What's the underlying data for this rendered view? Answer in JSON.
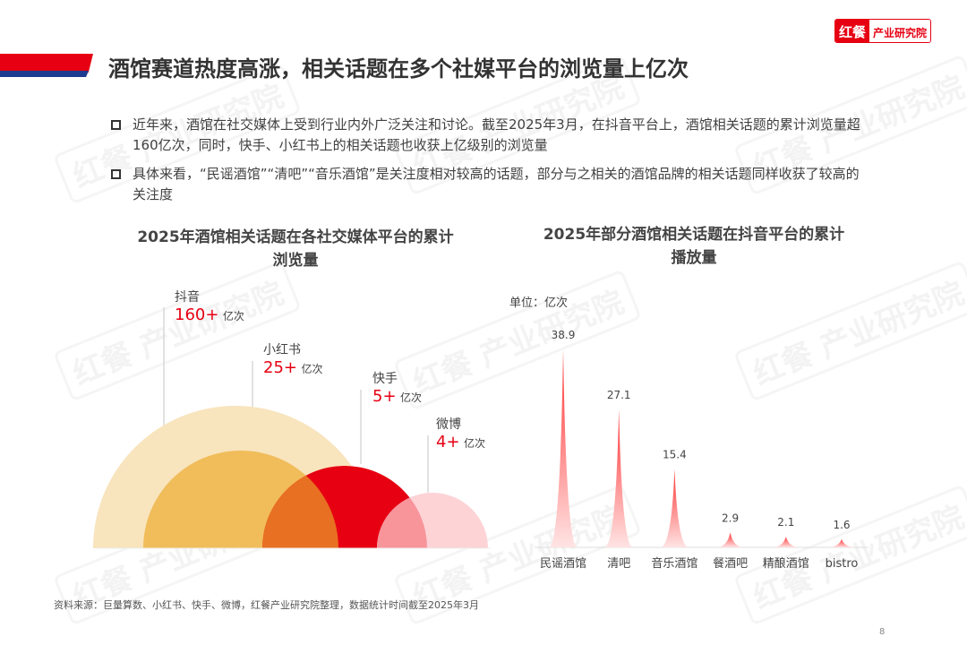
{
  "logo": {
    "brand": "红餐",
    "name": "产业研究院"
  },
  "watermark": "红餐 产业研究院",
  "title": "酒馆赛道热度高涨，相关话题在多个社媒平台的浏览量上亿次",
  "bullets": [
    "近年来，酒馆在社交媒体上受到行业内外广泛关注和讨论。截至2025年3月，在抖音平台上，酒馆相关话题的累计浏览量超160亿次，同时，快手、小红书上的相关话题也收获上亿级别的浏览量",
    "具体来看，“民谣酒馆”“清吧”“音乐酒馆”是关注度相对较高的话题，部分与之相关的酒馆品牌的相关话题同样收获了较高的关注度"
  ],
  "chart_data": [
    {
      "type": "bubble-semicircle",
      "title": "2025年酒馆相关话题在各社交媒体平台的累计浏览量",
      "unit": "亿次",
      "items": [
        {
          "platform": "抖音",
          "value_label": "160+",
          "value": 160,
          "color": "#f8e4bd"
        },
        {
          "platform": "小红书",
          "value_label": "25+",
          "value": 25,
          "color": "#f0bd5a"
        },
        {
          "platform": "快手",
          "value_label": "5+",
          "value": 5,
          "color": "#e60012"
        },
        {
          "platform": "微博",
          "value_label": "4+",
          "value": 4,
          "color": "#fdd3d6"
        }
      ]
    },
    {
      "type": "bar",
      "title": "2025年部分酒馆相关话题在抖音平台的累计播放量",
      "unit_label": "单位：亿次",
      "categories": [
        "民谣酒馆",
        "清吧",
        "音乐酒馆",
        "餐酒吧",
        "精酿酒馆",
        "bistro"
      ],
      "values": [
        38.9,
        27.1,
        15.4,
        2.9,
        2.1,
        1.6
      ],
      "value_labels": [
        "38.9",
        "27.1",
        "15.4",
        "2.9",
        "2.1",
        "1.6"
      ],
      "color": "#ff3b3b"
    }
  ],
  "source": "资料来源：巨量算数、小红书、快手、微博，红餐产业研究院整理，数据统计时间截至2025年3月",
  "page_number": "8"
}
